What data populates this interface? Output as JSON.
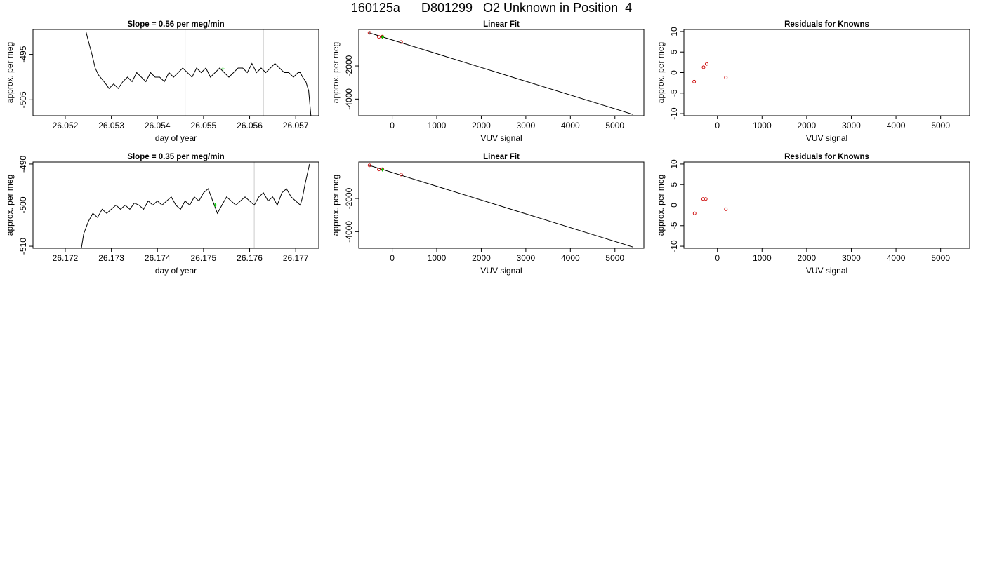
{
  "title": "160125a      D801299   O2 Unknown in Position  4",
  "colors": {
    "trace": "#000000",
    "vline": "#cccccc",
    "known": "#cc0000",
    "unknown": "#00cc00"
  },
  "chart_data": [
    {
      "type": "line",
      "title": "Slope =  0.56  per meg/min",
      "xlabel": "day of year",
      "ylabel": "approx. per meg",
      "xlim": [
        26.0513,
        26.0575
      ],
      "ylim": [
        -508.5,
        -489.5
      ],
      "xticks": [
        26.052,
        26.053,
        26.054,
        26.055,
        26.056,
        26.057
      ],
      "xtick_labels": [
        "26.052",
        "26.053",
        "26.054",
        "26.055",
        "26.056",
        "26.057"
      ],
      "yticks": [
        -505,
        -495
      ],
      "ytick_labels": [
        "-505",
        "-495"
      ],
      "vlines": [
        26.0546,
        26.0563
      ],
      "series": [
        {
          "values_x": [
            26.05245,
            26.0525,
            26.05258,
            26.05265,
            26.05272,
            26.0528,
            26.05288,
            26.05295,
            26.05305,
            26.05315,
            26.05325,
            26.05335,
            26.05345,
            26.05355,
            26.05365,
            26.05375,
            26.05385,
            26.05395,
            26.05405,
            26.05415,
            26.05425,
            26.05435,
            26.05445,
            26.05455,
            26.05465,
            26.05475,
            26.05485,
            26.05495,
            26.05505,
            26.05515,
            26.05525,
            26.05535,
            26.05545,
            26.05555,
            26.05565,
            26.05575,
            26.05585,
            26.05595,
            26.05605,
            26.05615,
            26.05625,
            26.05635,
            26.05645,
            26.05655,
            26.05665,
            26.05675,
            26.05685,
            26.05695,
            26.05705,
            26.0571,
            26.05715,
            26.05722,
            26.05728,
            26.05733
          ],
          "values_y": [
            -490,
            -492,
            -495,
            -498,
            -499.5,
            -500.5,
            -501.5,
            -502.5,
            -501.5,
            -502.5,
            -501,
            -500,
            -501,
            -499,
            -500,
            -501,
            -499,
            -500,
            -500,
            -501,
            -499,
            -500,
            -499,
            -498,
            -499,
            -500,
            -498,
            -499,
            -498,
            -500,
            -499,
            -498,
            -499,
            -500,
            -499,
            -498,
            -498,
            -499,
            -497,
            -499,
            -498,
            -499,
            -498,
            -497,
            -498,
            -499,
            -499,
            -500,
            -499,
            -499,
            -500,
            -501,
            -503,
            -508.5
          ]
        }
      ],
      "unknown_point": {
        "x": 26.05542,
        "y": -498.2
      }
    },
    {
      "type": "scatter",
      "title": "Linear Fit",
      "xlabel": "VUV signal",
      "ylabel": "approx. per meg",
      "xlim": [
        -750,
        5650
      ],
      "ylim": [
        -5000,
        200
      ],
      "xticks": [
        0,
        1000,
        2000,
        3000,
        4000,
        5000
      ],
      "xtick_labels": [
        "0",
        "1000",
        "2000",
        "3000",
        "4000",
        "5000"
      ],
      "yticks": [
        -4000,
        -2000
      ],
      "ytick_labels": [
        "-4000",
        "-2000"
      ],
      "fit_line": {
        "x": [
          -520,
          5400
        ],
        "y": [
          0,
          -4920
        ]
      },
      "knowns": {
        "x": [
          -510,
          -300,
          -220,
          200
        ],
        "y": [
          -2,
          -250,
          -230,
          -560
        ]
      },
      "unknown_point": {
        "x": -220,
        "y": -265
      }
    },
    {
      "type": "scatter",
      "title": "Residuals for Knowns",
      "xlabel": "VUV signal",
      "ylabel": "approx. per meg",
      "xlim": [
        -750,
        5650
      ],
      "ylim": [
        -10.5,
        10.5
      ],
      "xticks": [
        0,
        1000,
        2000,
        3000,
        4000,
        5000
      ],
      "xtick_labels": [
        "0",
        "1000",
        "2000",
        "3000",
        "4000",
        "5000"
      ],
      "yticks": [
        -10,
        -5,
        0,
        5,
        10
      ],
      "ytick_labels": [
        "-10",
        "-5",
        "0",
        "5",
        "10"
      ],
      "knowns": {
        "x": [
          -520,
          -310,
          -240,
          190
        ],
        "y": [
          -2.2,
          1.3,
          2.1,
          -1.2
        ]
      }
    },
    {
      "type": "line",
      "title": "Slope =  0.35  per meg/min",
      "xlabel": "day of year",
      "ylabel": "approx. per meg",
      "xlim": [
        26.1713,
        26.1775
      ],
      "ylim": [
        -510.5,
        -489.5
      ],
      "xticks": [
        26.172,
        26.173,
        26.174,
        26.175,
        26.176,
        26.177
      ],
      "xtick_labels": [
        "26.172",
        "26.173",
        "26.174",
        "26.175",
        "26.176",
        "26.177"
      ],
      "yticks": [
        -510,
        -500,
        -490
      ],
      "ytick_labels": [
        "-510",
        "-500",
        "-490"
      ],
      "vlines": [
        26.1744,
        26.1761
      ],
      "series": [
        {
          "values_x": [
            26.17235,
            26.1724,
            26.1725,
            26.1726,
            26.1727,
            26.1728,
            26.1729,
            26.173,
            26.1731,
            26.1732,
            26.1733,
            26.1734,
            26.1735,
            26.1736,
            26.1737,
            26.1738,
            26.1739,
            26.174,
            26.1741,
            26.1742,
            26.1743,
            26.1744,
            26.1745,
            26.1746,
            26.1747,
            26.1748,
            26.1749,
            26.175,
            26.1751,
            26.1752,
            26.1753,
            26.1754,
            26.1755,
            26.1756,
            26.1757,
            26.1758,
            26.1759,
            26.176,
            26.1761,
            26.1762,
            26.1763,
            26.1764,
            26.1765,
            26.1766,
            26.1767,
            26.1768,
            26.1769,
            26.177,
            26.1771,
            26.17715,
            26.1772,
            26.1773
          ],
          "values_y": [
            -510.5,
            -507,
            -504,
            -502,
            -503,
            -501,
            -502,
            -501,
            -500,
            -501,
            -500,
            -501,
            -499.5,
            -500,
            -501,
            -499,
            -500,
            -499,
            -500,
            -499,
            -498,
            -500,
            -501,
            -499,
            -500,
            -498,
            -499,
            -497,
            -496,
            -499,
            -502,
            -500,
            -498,
            -499,
            -500,
            -499,
            -498,
            -499,
            -500,
            -498,
            -497,
            -499,
            -498,
            -500,
            -497,
            -496,
            -498,
            -499,
            -500,
            -498,
            -495,
            -490
          ]
        }
      ],
      "unknown_point": {
        "x": 26.17525,
        "y": -500
      }
    },
    {
      "type": "scatter",
      "title": "Linear Fit",
      "xlabel": "VUV signal",
      "ylabel": "approx. per meg",
      "xlim": [
        -750,
        5650
      ],
      "ylim": [
        -5000,
        200
      ],
      "xticks": [
        0,
        1000,
        2000,
        3000,
        4000,
        5000
      ],
      "xtick_labels": [
        "0",
        "1000",
        "2000",
        "3000",
        "4000",
        "5000"
      ],
      "yticks": [
        -4000,
        -2000
      ],
      "ytick_labels": [
        "-4000",
        "-2000"
      ],
      "fit_line": {
        "x": [
          -520,
          5400
        ],
        "y": [
          0,
          -4920
        ]
      },
      "knowns": {
        "x": [
          -510,
          -300,
          -220,
          200
        ],
        "y": [
          -2,
          -250,
          -230,
          -560
        ]
      },
      "unknown_point": {
        "x": -220,
        "y": -265
      }
    },
    {
      "type": "scatter",
      "title": "Residuals for Knowns",
      "xlabel": "VUV signal",
      "ylabel": "approx. per meg",
      "xlim": [
        -750,
        5650
      ],
      "ylim": [
        -10.5,
        10.5
      ],
      "xticks": [
        0,
        1000,
        2000,
        3000,
        4000,
        5000
      ],
      "xtick_labels": [
        "0",
        "1000",
        "2000",
        "3000",
        "4000",
        "5000"
      ],
      "yticks": [
        -10,
        -5,
        0,
        5,
        10
      ],
      "ytick_labels": [
        "-10",
        "-5",
        "0",
        "5",
        "10"
      ],
      "knowns": {
        "x": [
          -510,
          -320,
          -260,
          190
        ],
        "y": [
          -2,
          1.5,
          1.5,
          -1
        ]
      }
    }
  ]
}
